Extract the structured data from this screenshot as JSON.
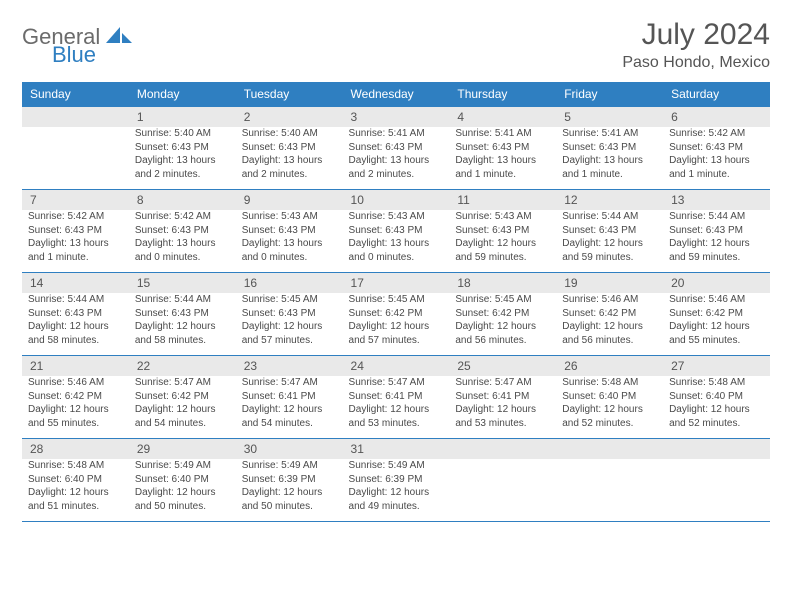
{
  "logo": {
    "text1": "General",
    "text2": "Blue"
  },
  "title": "July 2024",
  "location": "Paso Hondo, Mexico",
  "dow": [
    "Sunday",
    "Monday",
    "Tuesday",
    "Wednesday",
    "Thursday",
    "Friday",
    "Saturday"
  ],
  "colors": {
    "header_band": "#2f7fc1",
    "day_band": "#e9e9e9",
    "rule": "#2f7fc1",
    "text": "#4a4a4a",
    "title": "#555555"
  },
  "weeks": [
    [
      null,
      {
        "n": "1",
        "sr": "Sunrise: 5:40 AM",
        "ss": "Sunset: 6:43 PM",
        "d1": "Daylight: 13 hours",
        "d2": "and 2 minutes."
      },
      {
        "n": "2",
        "sr": "Sunrise: 5:40 AM",
        "ss": "Sunset: 6:43 PM",
        "d1": "Daylight: 13 hours",
        "d2": "and 2 minutes."
      },
      {
        "n": "3",
        "sr": "Sunrise: 5:41 AM",
        "ss": "Sunset: 6:43 PM",
        "d1": "Daylight: 13 hours",
        "d2": "and 2 minutes."
      },
      {
        "n": "4",
        "sr": "Sunrise: 5:41 AM",
        "ss": "Sunset: 6:43 PM",
        "d1": "Daylight: 13 hours",
        "d2": "and 1 minute."
      },
      {
        "n": "5",
        "sr": "Sunrise: 5:41 AM",
        "ss": "Sunset: 6:43 PM",
        "d1": "Daylight: 13 hours",
        "d2": "and 1 minute."
      },
      {
        "n": "6",
        "sr": "Sunrise: 5:42 AM",
        "ss": "Sunset: 6:43 PM",
        "d1": "Daylight: 13 hours",
        "d2": "and 1 minute."
      }
    ],
    [
      {
        "n": "7",
        "sr": "Sunrise: 5:42 AM",
        "ss": "Sunset: 6:43 PM",
        "d1": "Daylight: 13 hours",
        "d2": "and 1 minute."
      },
      {
        "n": "8",
        "sr": "Sunrise: 5:42 AM",
        "ss": "Sunset: 6:43 PM",
        "d1": "Daylight: 13 hours",
        "d2": "and 0 minutes."
      },
      {
        "n": "9",
        "sr": "Sunrise: 5:43 AM",
        "ss": "Sunset: 6:43 PM",
        "d1": "Daylight: 13 hours",
        "d2": "and 0 minutes."
      },
      {
        "n": "10",
        "sr": "Sunrise: 5:43 AM",
        "ss": "Sunset: 6:43 PM",
        "d1": "Daylight: 13 hours",
        "d2": "and 0 minutes."
      },
      {
        "n": "11",
        "sr": "Sunrise: 5:43 AM",
        "ss": "Sunset: 6:43 PM",
        "d1": "Daylight: 12 hours",
        "d2": "and 59 minutes."
      },
      {
        "n": "12",
        "sr": "Sunrise: 5:44 AM",
        "ss": "Sunset: 6:43 PM",
        "d1": "Daylight: 12 hours",
        "d2": "and 59 minutes."
      },
      {
        "n": "13",
        "sr": "Sunrise: 5:44 AM",
        "ss": "Sunset: 6:43 PM",
        "d1": "Daylight: 12 hours",
        "d2": "and 59 minutes."
      }
    ],
    [
      {
        "n": "14",
        "sr": "Sunrise: 5:44 AM",
        "ss": "Sunset: 6:43 PM",
        "d1": "Daylight: 12 hours",
        "d2": "and 58 minutes."
      },
      {
        "n": "15",
        "sr": "Sunrise: 5:44 AM",
        "ss": "Sunset: 6:43 PM",
        "d1": "Daylight: 12 hours",
        "d2": "and 58 minutes."
      },
      {
        "n": "16",
        "sr": "Sunrise: 5:45 AM",
        "ss": "Sunset: 6:43 PM",
        "d1": "Daylight: 12 hours",
        "d2": "and 57 minutes."
      },
      {
        "n": "17",
        "sr": "Sunrise: 5:45 AM",
        "ss": "Sunset: 6:42 PM",
        "d1": "Daylight: 12 hours",
        "d2": "and 57 minutes."
      },
      {
        "n": "18",
        "sr": "Sunrise: 5:45 AM",
        "ss": "Sunset: 6:42 PM",
        "d1": "Daylight: 12 hours",
        "d2": "and 56 minutes."
      },
      {
        "n": "19",
        "sr": "Sunrise: 5:46 AM",
        "ss": "Sunset: 6:42 PM",
        "d1": "Daylight: 12 hours",
        "d2": "and 56 minutes."
      },
      {
        "n": "20",
        "sr": "Sunrise: 5:46 AM",
        "ss": "Sunset: 6:42 PM",
        "d1": "Daylight: 12 hours",
        "d2": "and 55 minutes."
      }
    ],
    [
      {
        "n": "21",
        "sr": "Sunrise: 5:46 AM",
        "ss": "Sunset: 6:42 PM",
        "d1": "Daylight: 12 hours",
        "d2": "and 55 minutes."
      },
      {
        "n": "22",
        "sr": "Sunrise: 5:47 AM",
        "ss": "Sunset: 6:42 PM",
        "d1": "Daylight: 12 hours",
        "d2": "and 54 minutes."
      },
      {
        "n": "23",
        "sr": "Sunrise: 5:47 AM",
        "ss": "Sunset: 6:41 PM",
        "d1": "Daylight: 12 hours",
        "d2": "and 54 minutes."
      },
      {
        "n": "24",
        "sr": "Sunrise: 5:47 AM",
        "ss": "Sunset: 6:41 PM",
        "d1": "Daylight: 12 hours",
        "d2": "and 53 minutes."
      },
      {
        "n": "25",
        "sr": "Sunrise: 5:47 AM",
        "ss": "Sunset: 6:41 PM",
        "d1": "Daylight: 12 hours",
        "d2": "and 53 minutes."
      },
      {
        "n": "26",
        "sr": "Sunrise: 5:48 AM",
        "ss": "Sunset: 6:40 PM",
        "d1": "Daylight: 12 hours",
        "d2": "and 52 minutes."
      },
      {
        "n": "27",
        "sr": "Sunrise: 5:48 AM",
        "ss": "Sunset: 6:40 PM",
        "d1": "Daylight: 12 hours",
        "d2": "and 52 minutes."
      }
    ],
    [
      {
        "n": "28",
        "sr": "Sunrise: 5:48 AM",
        "ss": "Sunset: 6:40 PM",
        "d1": "Daylight: 12 hours",
        "d2": "and 51 minutes."
      },
      {
        "n": "29",
        "sr": "Sunrise: 5:49 AM",
        "ss": "Sunset: 6:40 PM",
        "d1": "Daylight: 12 hours",
        "d2": "and 50 minutes."
      },
      {
        "n": "30",
        "sr": "Sunrise: 5:49 AM",
        "ss": "Sunset: 6:39 PM",
        "d1": "Daylight: 12 hours",
        "d2": "and 50 minutes."
      },
      {
        "n": "31",
        "sr": "Sunrise: 5:49 AM",
        "ss": "Sunset: 6:39 PM",
        "d1": "Daylight: 12 hours",
        "d2": "and 49 minutes."
      },
      null,
      null,
      null
    ]
  ]
}
